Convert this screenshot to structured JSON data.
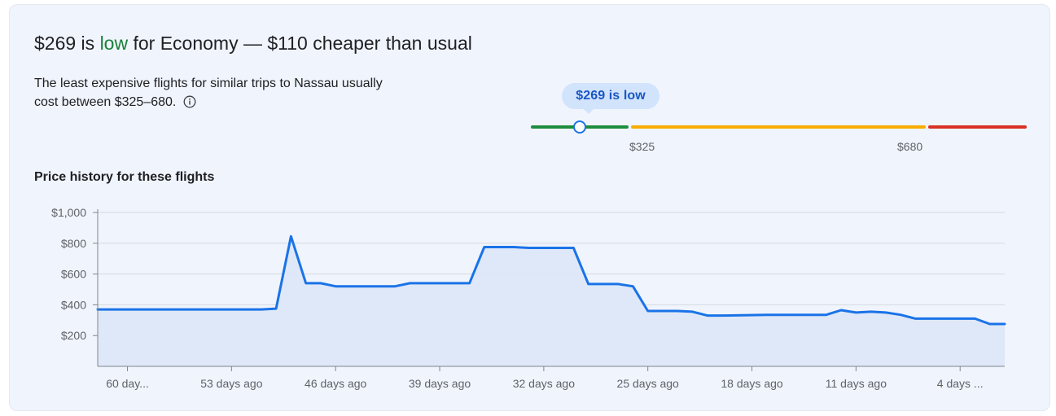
{
  "header": {
    "price": "$269",
    "is_text": " is ",
    "level": "low",
    "rest": " for Economy — $110 cheaper than usual"
  },
  "summary": {
    "text": "The least expensive flights for similar trips to Nassau usually cost between $325–680.",
    "info_icon": "info-icon"
  },
  "price_range": {
    "current_label": "$269 is low",
    "current_price": 269,
    "low_threshold": 325,
    "high_threshold": 680,
    "low_label": "$325",
    "high_label": "$680",
    "colors": {
      "low": "#1e8e3e",
      "typical": "#f9ab00",
      "high": "#d93025"
    }
  },
  "chart_title": "Price history for these flights",
  "chart_data": {
    "type": "area",
    "title": "Price history for these flights",
    "xlabel": "",
    "ylabel": "",
    "x_ticks": [
      "60 day...",
      "53 days ago",
      "46 days ago",
      "39 days ago",
      "32 days ago",
      "25 days ago",
      "18 days ago",
      "11 days ago",
      "4 days ..."
    ],
    "y_ticks": [
      "$200",
      "$400",
      "$600",
      "$800",
      "$1,000"
    ],
    "y_tick_values": [
      200,
      400,
      600,
      800,
      1000
    ],
    "ylim": [
      0,
      1000
    ],
    "days_ago_range": [
      62,
      1
    ],
    "grid": true,
    "line_color": "#1a73e8",
    "fill_color": "#dde7f8",
    "series": [
      {
        "days_ago": [
          62,
          51,
          50,
          49,
          48,
          47,
          46,
          45,
          42,
          41,
          40,
          37,
          36,
          35,
          34,
          33,
          30,
          29,
          28,
          27,
          26,
          25,
          24,
          23,
          22,
          21,
          20,
          17,
          16,
          15,
          14,
          13,
          12,
          11,
          10,
          9,
          8,
          7,
          6,
          5,
          3,
          2,
          1
        ],
        "values": [
          370,
          370,
          375,
          845,
          540,
          540,
          520,
          520,
          520,
          540,
          540,
          540,
          775,
          775,
          775,
          770,
          770,
          535,
          535,
          535,
          520,
          360,
          360,
          360,
          355,
          330,
          330,
          335,
          335,
          335,
          335,
          335,
          365,
          350,
          355,
          350,
          335,
          310,
          310,
          310,
          310,
          275,
          275
        ]
      }
    ]
  }
}
